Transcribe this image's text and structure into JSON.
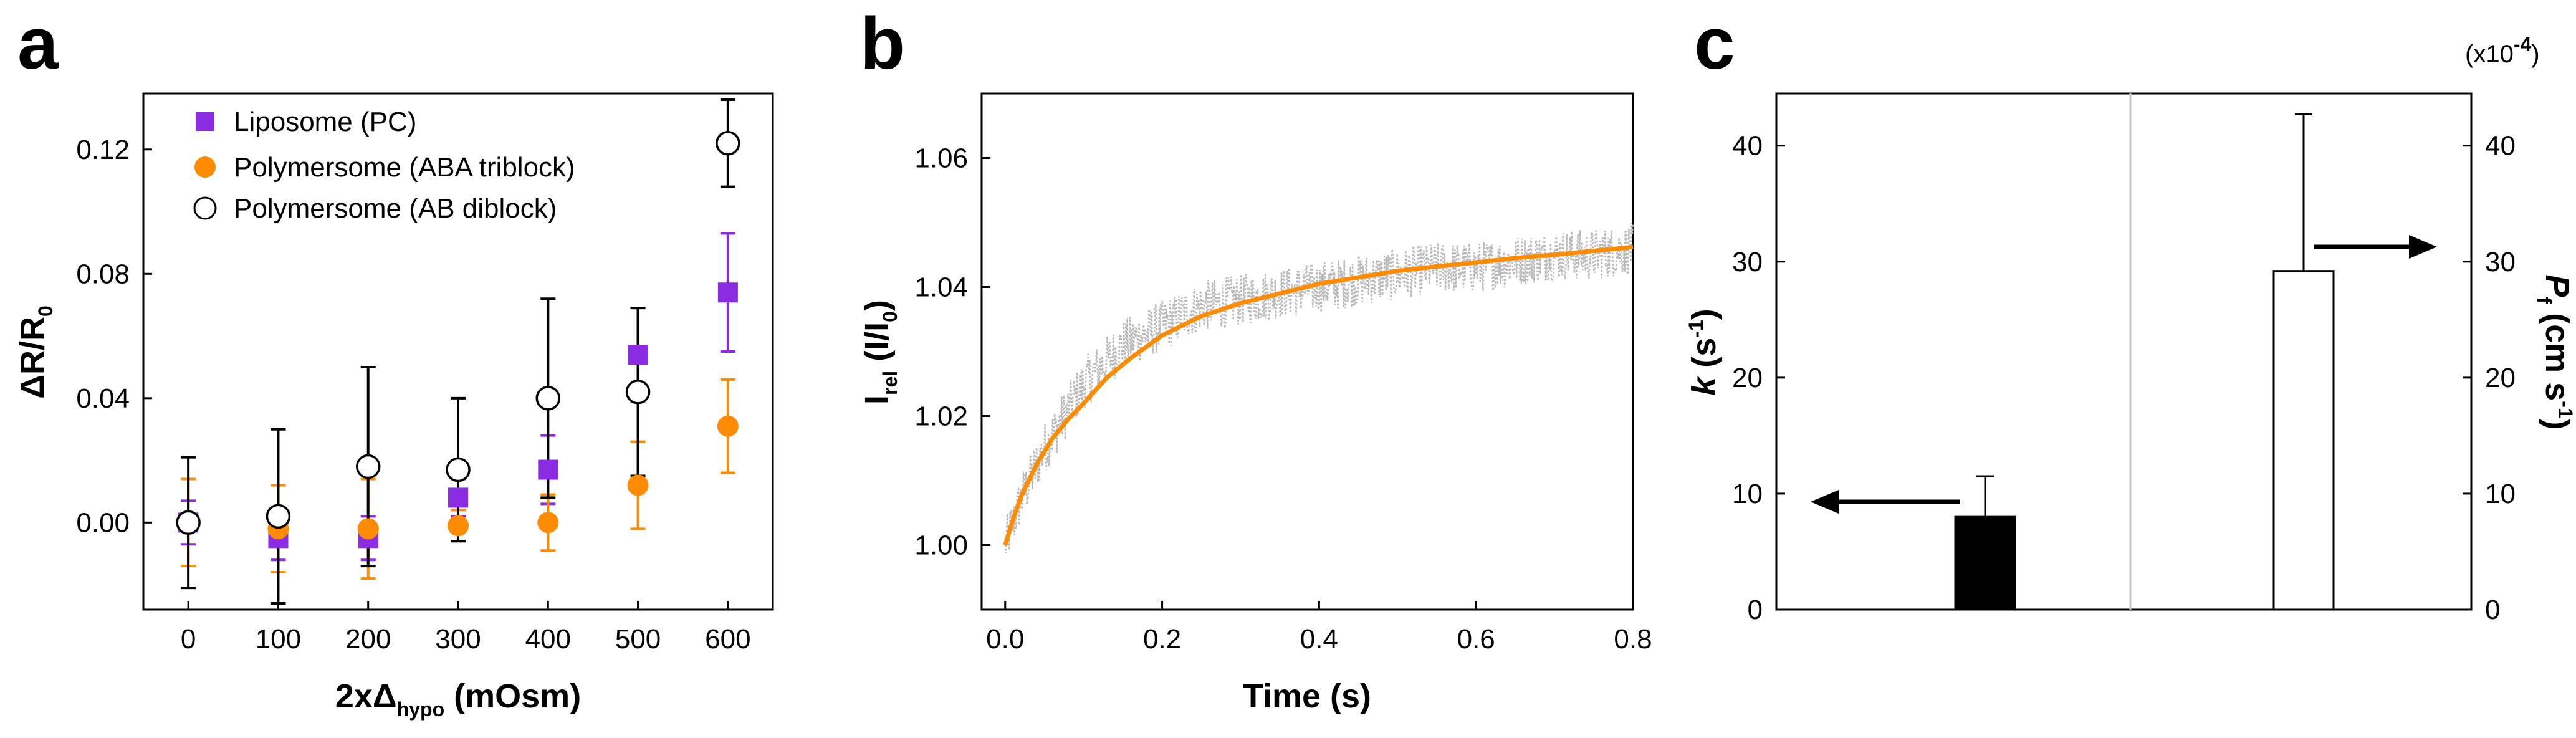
{
  "colors": {
    "liposome": "#8B2BE2",
    "triblock": "#FF8C00",
    "diblock_edge": "#000000",
    "fit_line": "#FF8C00",
    "raw_points": "#B8B8B8",
    "divider": "#C8C8C8",
    "bar_k": "#000000",
    "bar_p": "#FFFFFF"
  },
  "panels": {
    "a": {
      "letter": "a",
      "xlabel_main": "2xΔ",
      "xlabel_sub": "hypo",
      "xlabel_tail": " (mOsm)",
      "ylabel_main": "ΔR/R",
      "ylabel_sub": "0",
      "legend": [
        "Liposome (PC)",
        "Polymersome (ABA triblock)",
        "Polymersome (AB diblock)"
      ]
    },
    "b": {
      "letter": "b",
      "xlabel": "Time (s)",
      "ylabel_main": "I",
      "ylabel_sub": "rel",
      "ylabel_mid": " (I/I",
      "ylabel_sub2": "0",
      "ylabel_end": ")"
    },
    "c": {
      "letter": "c",
      "scale_note": "(x10",
      "scale_exp": "-4",
      "scale_close": ")",
      "ylabel_left": "k",
      "ylabel_left_unit": " (s",
      "ylabel_left_exp": "-1",
      "ylabel_left_close": ")",
      "ylabel_right": "P",
      "ylabel_right_sub": "f",
      "ylabel_right_unit": " (cm s",
      "ylabel_right_exp": "-1",
      "ylabel_right_close": ")"
    }
  },
  "chart_data": [
    {
      "type": "scatter",
      "xlabel": "2xΔhypo (mOsm)",
      "ylabel": "ΔR/R0",
      "xlim": [
        -50,
        650
      ],
      "ylim": [
        -0.028,
        0.138
      ],
      "x_ticks": [
        0,
        100,
        200,
        300,
        400,
        500,
        600
      ],
      "x_tick_labels": [
        "0",
        "100",
        "200",
        "300",
        "400",
        "500",
        "600"
      ],
      "y_ticks": [
        0.0,
        0.04,
        0.08,
        0.12
      ],
      "y_tick_labels": [
        "0.00",
        "0.04",
        "0.08",
        "0.12"
      ],
      "legend_position": "top-left",
      "series": [
        {
          "name": "Liposome (PC)",
          "marker": "square",
          "x": [
            0,
            100,
            200,
            300,
            400,
            500,
            600
          ],
          "y": [
            0.0,
            -0.005,
            -0.005,
            0.008,
            0.017,
            0.054,
            0.074
          ],
          "yerr": [
            0.007,
            0.007,
            0.007,
            0.006,
            0.011,
            0.015,
            0.019
          ]
        },
        {
          "name": "Polymersome (ABA triblock)",
          "marker": "circle-filled",
          "x": [
            0,
            100,
            200,
            300,
            400,
            500,
            600
          ],
          "y": [
            0.0,
            -0.002,
            -0.002,
            -0.001,
            0.0,
            0.012,
            0.031
          ],
          "yerr": [
            0.014,
            0.014,
            0.016,
            0.005,
            0.009,
            0.014,
            0.015
          ]
        },
        {
          "name": "Polymersome (AB diblock)",
          "marker": "circle-open",
          "x": [
            0,
            100,
            200,
            300,
            400,
            500,
            600
          ],
          "y": [
            0.0,
            0.002,
            0.018,
            0.017,
            0.04,
            0.042,
            0.122
          ],
          "yerr": [
            0.021,
            0.028,
            0.032,
            0.023,
            0.032,
            0.027,
            0.014
          ]
        }
      ]
    },
    {
      "type": "line",
      "xlabel": "Time (s)",
      "ylabel": "Irel (I/I0)",
      "xlim": [
        -0.03,
        0.8
      ],
      "ylim": [
        0.99,
        1.07
      ],
      "x_ticks": [
        0.0,
        0.2,
        0.4,
        0.6,
        0.8
      ],
      "x_tick_labels": [
        "0.0",
        "0.2",
        "0.4",
        "0.6",
        "0.8"
      ],
      "y_ticks": [
        1.0,
        1.02,
        1.04,
        1.06
      ],
      "y_tick_labels": [
        "1.00",
        "1.02",
        "1.04",
        "1.06"
      ],
      "series": [
        {
          "kind": "raw-noisy",
          "x": [
            0.0,
            0.02,
            0.05,
            0.1,
            0.15,
            0.2,
            0.25,
            0.3,
            0.35,
            0.4,
            0.45,
            0.5,
            0.55,
            0.6,
            0.65,
            0.7,
            0.75,
            0.8
          ],
          "y": [
            1.0,
            1.007,
            1.015,
            1.025,
            1.031,
            1.034,
            1.037,
            1.038,
            1.039,
            1.04,
            1.041,
            1.042,
            1.043,
            1.043,
            1.044,
            1.045,
            1.045,
            1.046
          ],
          "noise": 0.004
        },
        {
          "kind": "fit",
          "x": [
            0.0,
            0.01,
            0.02,
            0.04,
            0.06,
            0.08,
            0.1,
            0.13,
            0.16,
            0.2,
            0.25,
            0.3,
            0.35,
            0.4,
            0.45,
            0.5,
            0.55,
            0.6,
            0.65,
            0.7,
            0.75,
            0.8
          ],
          "y": [
            1.0,
            1.004,
            1.0075,
            1.0125,
            1.0165,
            1.0195,
            1.022,
            1.026,
            1.029,
            1.0325,
            1.0355,
            1.0375,
            1.039,
            1.0405,
            1.0415,
            1.0425,
            1.0432,
            1.0438,
            1.0445,
            1.045,
            1.0456,
            1.0462
          ]
        }
      ]
    },
    {
      "type": "bar",
      "categories": [
        "k",
        "Pf"
      ],
      "left_axis": {
        "label": "k (s-1)",
        "ylim": [
          0,
          44.5
        ],
        "ticks": [
          0,
          10,
          20,
          30,
          40
        ],
        "tick_labels": [
          "0",
          "10",
          "20",
          "30",
          "40"
        ]
      },
      "right_axis": {
        "label": "Pf (cm s-1) (x10-4)",
        "ylim": [
          0,
          44.5
        ],
        "ticks": [
          0,
          10,
          20,
          30,
          40
        ],
        "tick_labels": [
          "0",
          "10",
          "20",
          "30",
          "40"
        ]
      },
      "series": [
        {
          "name": "k",
          "axis": "left",
          "value": 8.0,
          "error": 3.5,
          "fill": "black"
        },
        {
          "name": "Pf",
          "axis": "right",
          "value": 29.2,
          "error": 13.5,
          "fill": "white"
        }
      ]
    }
  ]
}
